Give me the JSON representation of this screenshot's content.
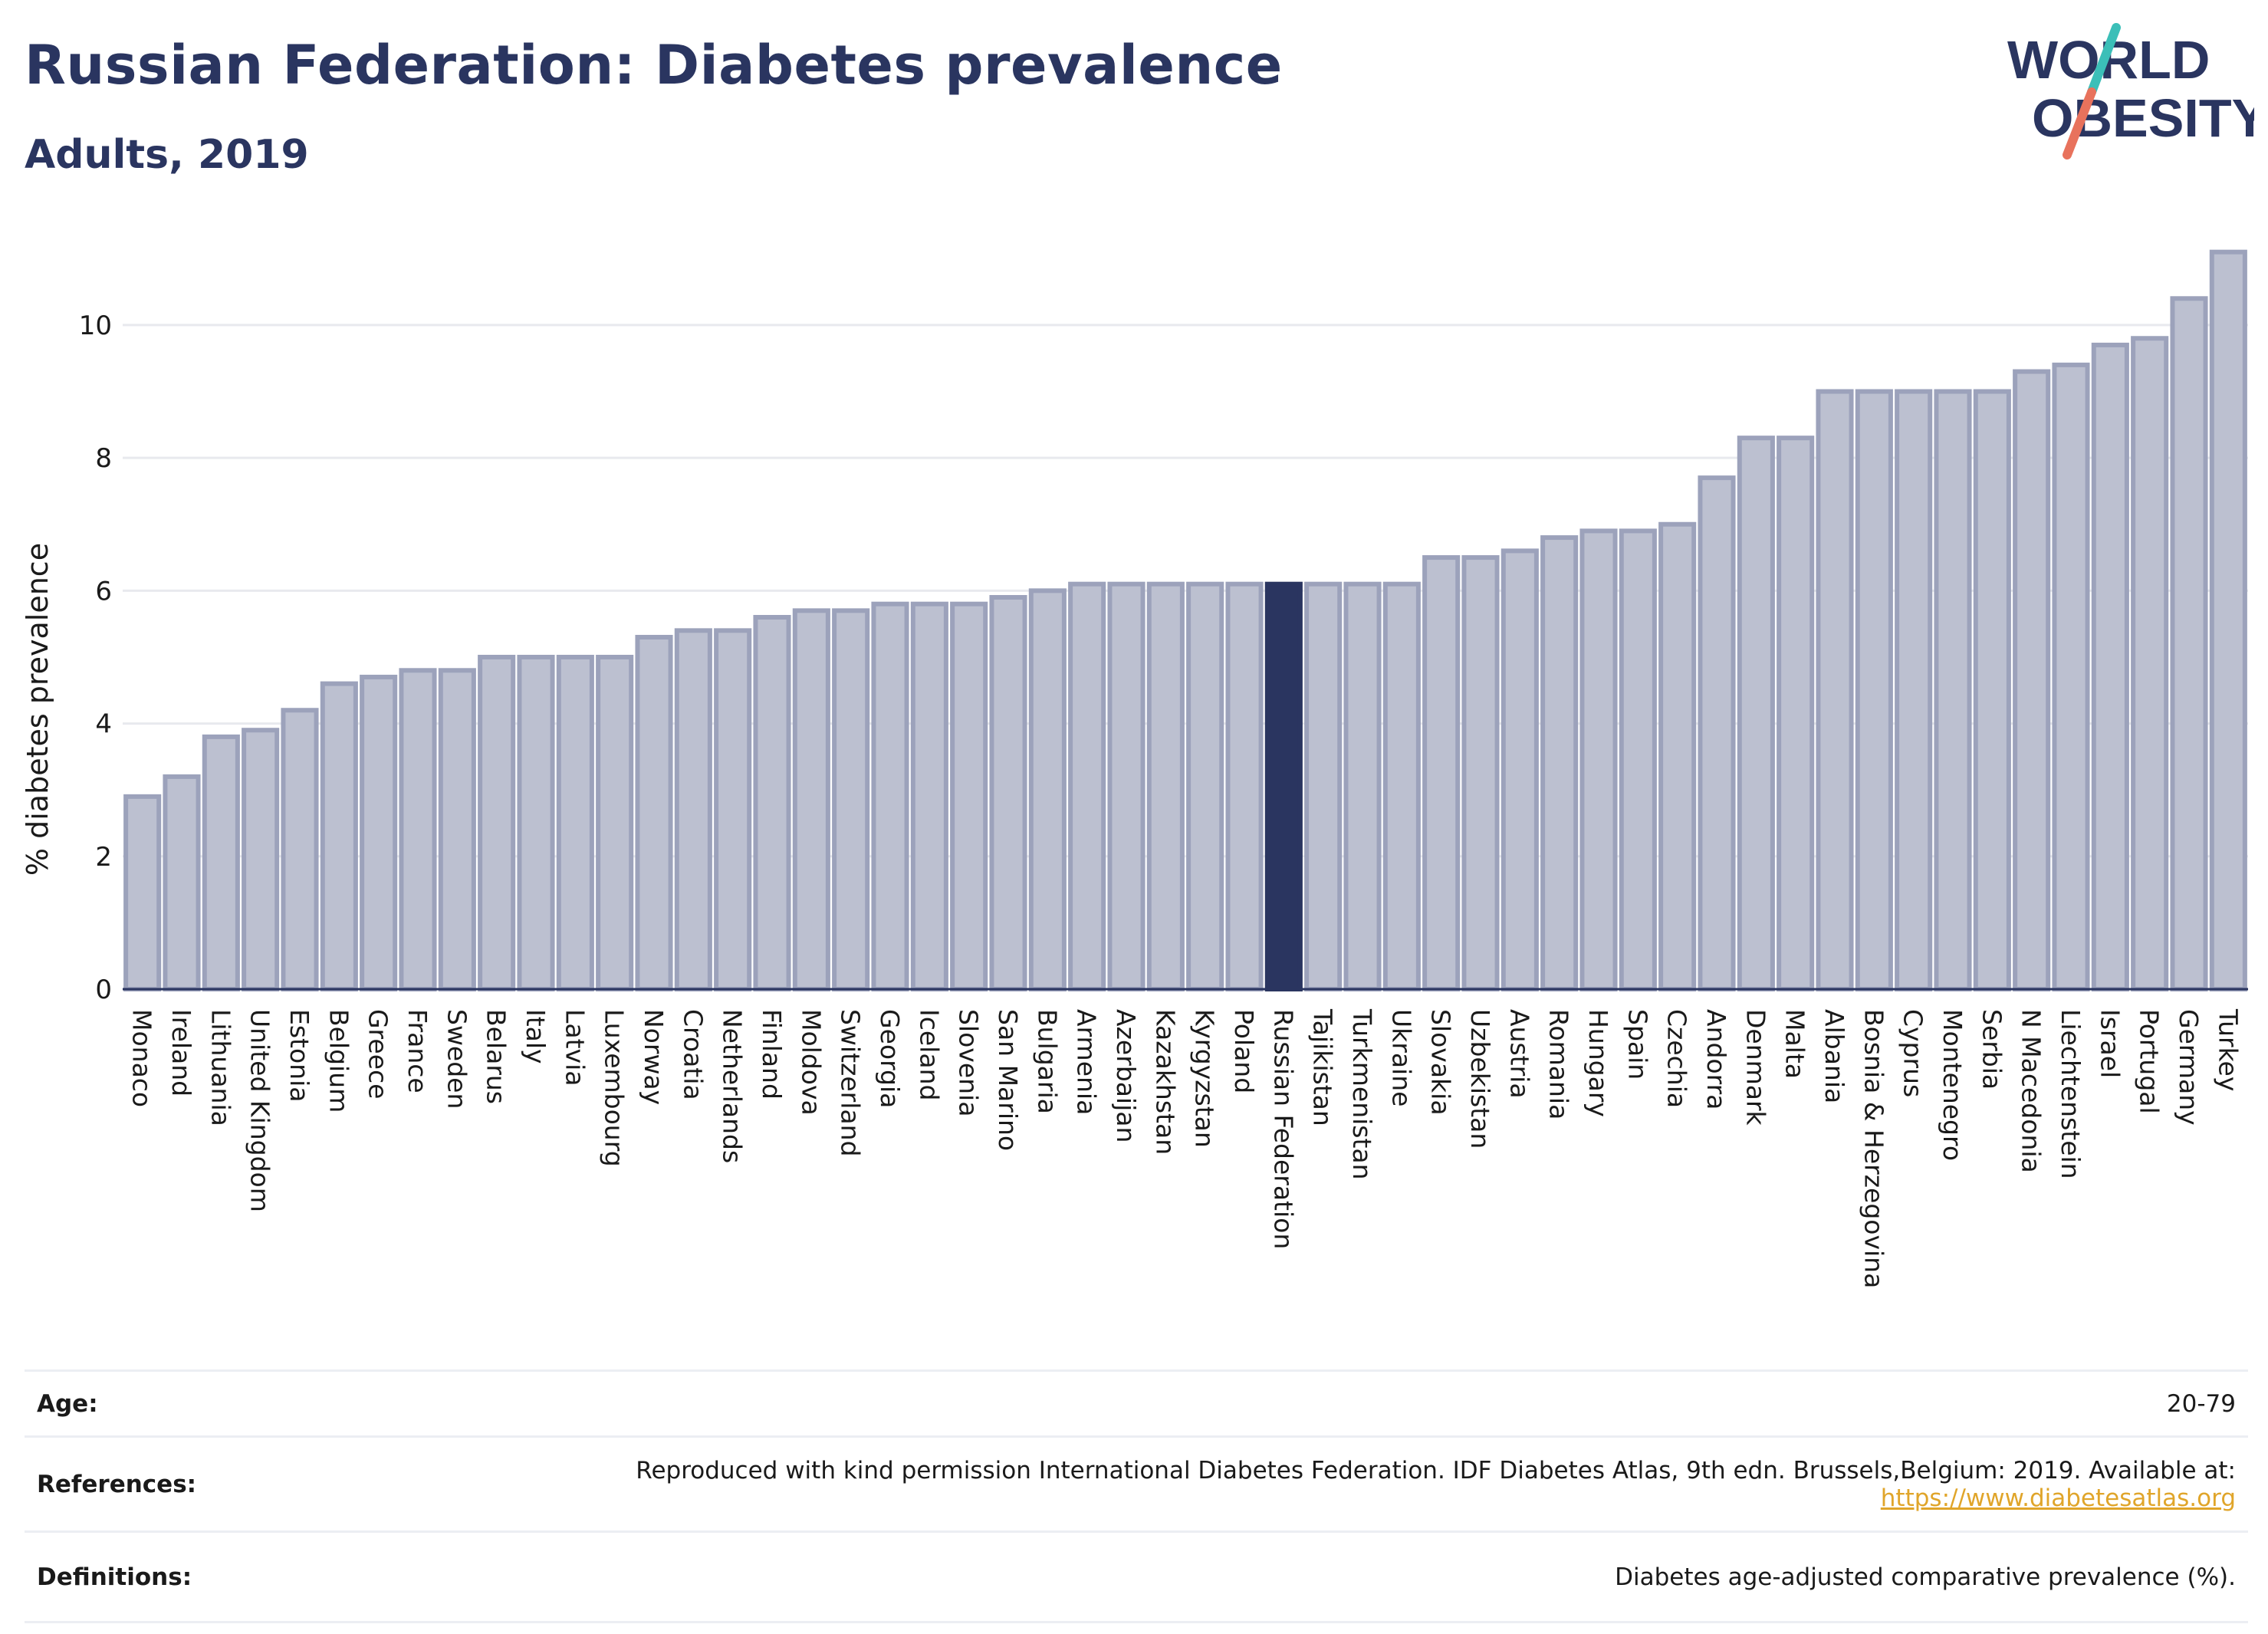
{
  "header": {
    "title": "Russian Federation: Diabetes prevalence",
    "subtitle": "Adults, 2019"
  },
  "logo": {
    "line1": "WORLD",
    "line2": "OBESITY",
    "slash_top_color": "#3bbfb8",
    "slash_bottom_color": "#e8725c"
  },
  "colors": {
    "bar_fill": "#bcc0d0",
    "bar_stroke": "#9ca2bb",
    "highlight_fill": "#2a3560",
    "text": "#2a3560",
    "link": "#e0a52a"
  },
  "chart_data": {
    "type": "bar",
    "ylabel": "% diabetes prevalence",
    "xlabel": "",
    "ylim": [
      0,
      11.2
    ],
    "yticks": [
      0,
      2,
      4,
      6,
      8,
      10
    ],
    "grid": true,
    "highlight": "Russian Federation",
    "categories": [
      "Monaco",
      "Ireland",
      "Lithuania",
      "United Kingdom",
      "Estonia",
      "Belgium",
      "Greece",
      "France",
      "Sweden",
      "Belarus",
      "Italy",
      "Latvia",
      "Luxembourg",
      "Norway",
      "Croatia",
      "Netherlands",
      "Finland",
      "Moldova",
      "Switzerland",
      "Georgia",
      "Iceland",
      "Slovenia",
      "San Marino",
      "Bulgaria",
      "Armenia",
      "Azerbaijan",
      "Kazakhstan",
      "Kyrgyzstan",
      "Poland",
      "Russian Federation",
      "Tajikistan",
      "Turkmenistan",
      "Ukraine",
      "Slovakia",
      "Uzbekistan",
      "Austria",
      "Romania",
      "Hungary",
      "Spain",
      "Czechia",
      "Andorra",
      "Denmark",
      "Malta",
      "Albania",
      "Bosnia & Herzegovina",
      "Cyprus",
      "Montenegro",
      "Serbia",
      "N Macedonia",
      "Liechtenstein",
      "Israel",
      "Portugal",
      "Germany",
      "Turkey"
    ],
    "values": [
      2.9,
      3.2,
      3.8,
      3.9,
      4.2,
      4.6,
      4.7,
      4.8,
      4.8,
      5.0,
      5.0,
      5.0,
      5.0,
      5.3,
      5.4,
      5.4,
      5.6,
      5.7,
      5.7,
      5.8,
      5.8,
      5.8,
      5.9,
      6.0,
      6.1,
      6.1,
      6.1,
      6.1,
      6.1,
      6.1,
      6.1,
      6.1,
      6.1,
      6.5,
      6.5,
      6.6,
      6.8,
      6.9,
      6.9,
      7.0,
      7.7,
      8.3,
      8.3,
      9.0,
      9.0,
      9.0,
      9.0,
      9.0,
      9.3,
      9.4,
      9.7,
      9.8,
      10.4,
      11.1
    ]
  },
  "info": {
    "age_label": "Age:",
    "age_value": "20-79",
    "references_label": "References:",
    "references_text": "Reproduced with kind permission International Diabetes Federation. IDF Diabetes Atlas, 9th edn. Brussels,Belgium: 2019. Available at:",
    "references_link": "https://www.diabetesatlas.org",
    "definitions_label": "Definitions:",
    "definitions_value": "Diabetes age-adjusted comparative prevalence (%)."
  }
}
